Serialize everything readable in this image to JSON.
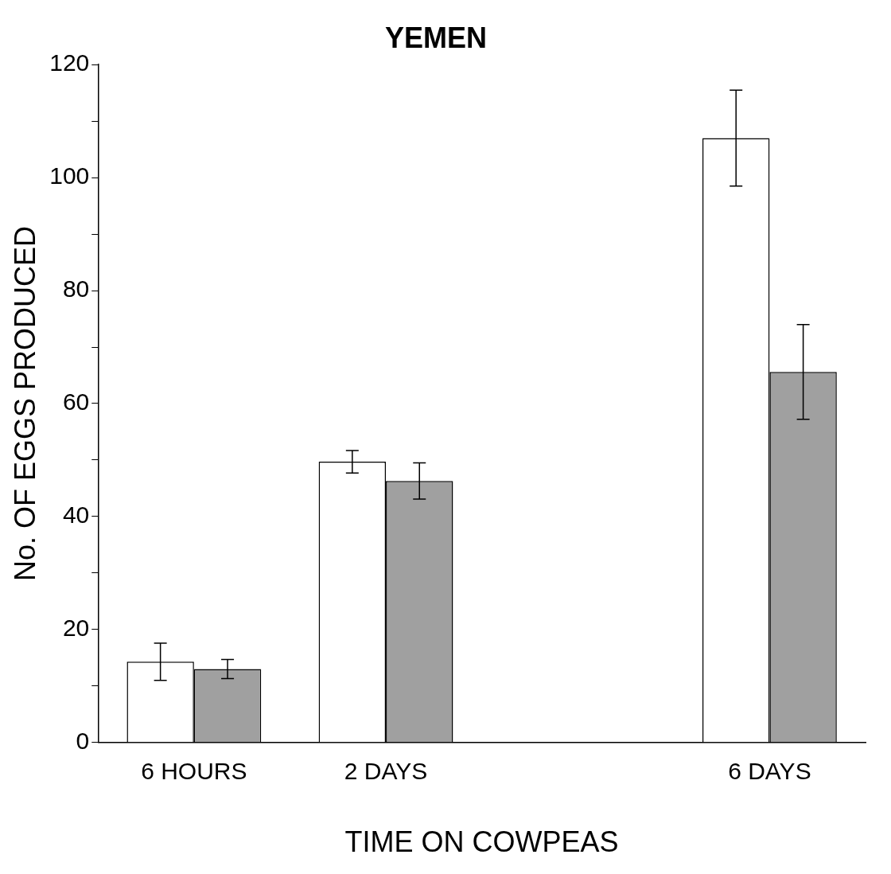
{
  "chart_data": {
    "type": "bar",
    "title": "YEMEN",
    "xlabel": "TIME ON COWPEAS",
    "ylabel": "No. OF EGGS PRODUCED",
    "categories": [
      "6 HOURS",
      "2 DAYS",
      null,
      "6 DAYS"
    ],
    "series": [
      {
        "color": "#ffffff",
        "values": [
          14.3,
          49.7,
          null,
          107
        ],
        "errors": [
          3.3,
          2,
          null,
          8.5
        ]
      },
      {
        "color": "#a0a0a0",
        "values": [
          13,
          46.3,
          null,
          65.6
        ],
        "errors": [
          1.7,
          3.2,
          null,
          8.4
        ]
      }
    ],
    "ylim": [
      0,
      120
    ],
    "yticks": [
      0,
      {
        "value": 10,
        "label": null
      },
      20,
      {
        "value": 30,
        "label": null
      },
      40,
      {
        "value": 50,
        "label": null
      },
      60,
      {
        "value": 70,
        "label": null
      },
      80,
      {
        "value": 90,
        "label": null
      },
      100,
      {
        "value": 110,
        "label": null
      },
      120
    ],
    "grid": false,
    "legend": false
  }
}
